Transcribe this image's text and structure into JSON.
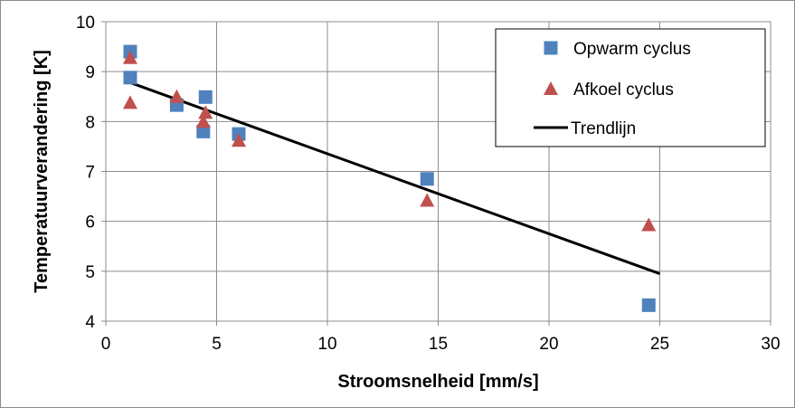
{
  "chart_data": {
    "type": "scatter",
    "xlabel": "Stroomsnelheid [mm/s]",
    "ylabel": "Temperatuurverandering [K]",
    "xlim": [
      0,
      30
    ],
    "ylim": [
      4,
      10
    ],
    "x_ticks": [
      0,
      5,
      10,
      15,
      20,
      25,
      30
    ],
    "y_ticks": [
      4,
      5,
      6,
      7,
      8,
      9,
      10
    ],
    "grid": true,
    "legend_position": "top-right",
    "series": [
      {
        "name": "Opwarm cyclus",
        "marker": "square",
        "color": "#4f81bd",
        "points": [
          {
            "x": 1.1,
            "y": 9.4
          },
          {
            "x": 1.1,
            "y": 8.88
          },
          {
            "x": 3.2,
            "y": 8.33
          },
          {
            "x": 4.4,
            "y": 7.8
          },
          {
            "x": 4.5,
            "y": 8.49
          },
          {
            "x": 6.0,
            "y": 7.75
          },
          {
            "x": 14.5,
            "y": 6.85
          },
          {
            "x": 24.5,
            "y": 4.32
          }
        ]
      },
      {
        "name": "Afkoel cyclus",
        "marker": "triangle",
        "color": "#c0504d",
        "points": [
          {
            "x": 1.1,
            "y": 9.28
          },
          {
            "x": 1.1,
            "y": 8.38
          },
          {
            "x": 3.2,
            "y": 8.5
          },
          {
            "x": 4.4,
            "y": 8.0
          },
          {
            "x": 4.5,
            "y": 8.18
          },
          {
            "x": 6.0,
            "y": 7.62
          },
          {
            "x": 14.5,
            "y": 6.42
          },
          {
            "x": 24.5,
            "y": 5.93
          }
        ]
      },
      {
        "name": "Trendlijn",
        "type": "line",
        "color": "#000000",
        "points": [
          {
            "x": 1.1,
            "y": 8.78
          },
          {
            "x": 25.0,
            "y": 4.95
          }
        ]
      }
    ]
  }
}
